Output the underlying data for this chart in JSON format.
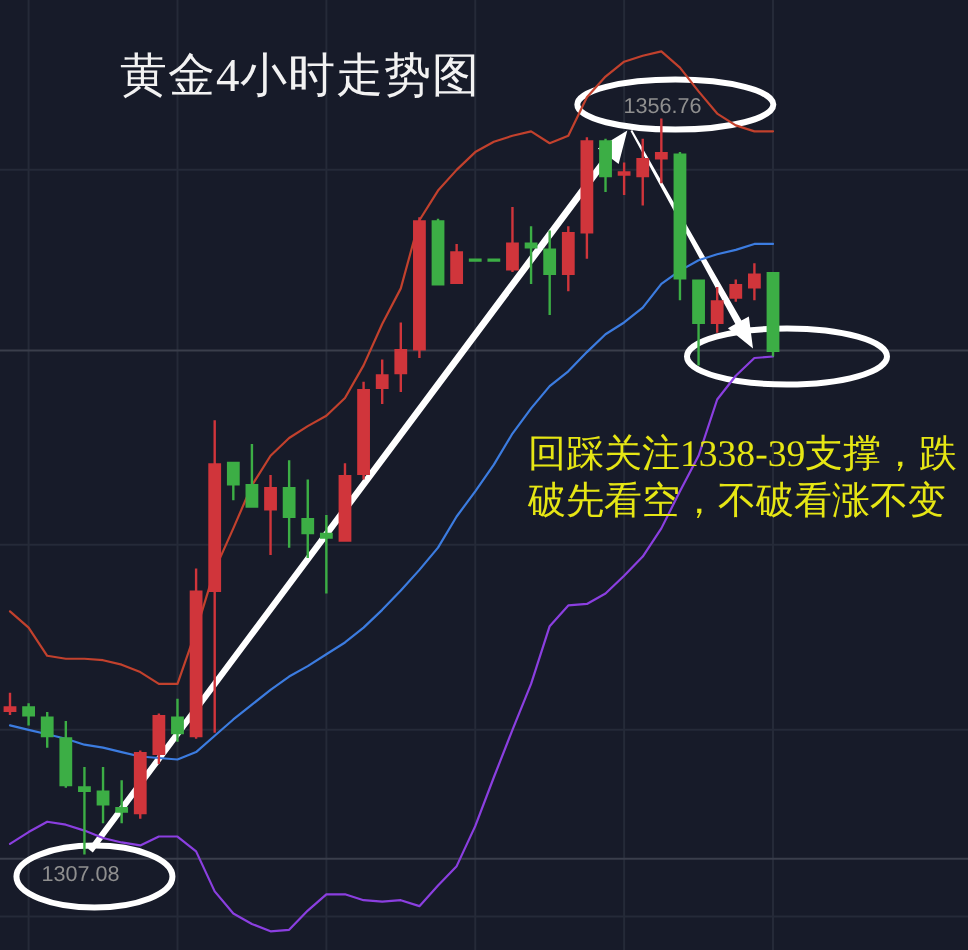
{
  "chart_data": {
    "type": "candlestick",
    "title": "黄金4小时走势图",
    "categories": [
      null,
      null,
      null,
      null,
      null,
      null,
      null,
      null,
      null,
      null,
      null,
      null,
      null,
      null,
      null,
      null,
      null,
      null,
      null,
      null,
      null,
      null,
      null,
      null,
      null,
      null,
      null,
      null,
      null,
      null,
      null,
      null,
      null,
      null,
      null,
      null,
      null,
      null,
      null,
      null,
      null,
      null
    ],
    "ohlc": [
      [
        1316.7,
        1318.0,
        1316.5,
        1317.1
      ],
      [
        1317.1,
        1317.3,
        1315.8,
        1316.4
      ],
      [
        1316.4,
        1316.7,
        1314.3,
        1315.0
      ],
      [
        1315.0,
        1316.1,
        1311.6,
        1311.7
      ],
      [
        1311.7,
        1313.0,
        1307.08,
        1311.3
      ],
      [
        1311.4,
        1313.0,
        1309.2,
        1310.4
      ],
      [
        1310.3,
        1312.1,
        1309.2,
        1309.9
      ],
      [
        1309.8,
        1314.1,
        1309.5,
        1314.0
      ],
      [
        1313.8,
        1316.6,
        1313.2,
        1316.5
      ],
      [
        1316.4,
        1317.6,
        1314.7,
        1315.2
      ],
      [
        1315.0,
        1326.4,
        1314.9,
        1324.9
      ],
      [
        1324.8,
        1336.4,
        1315.3,
        1333.5
      ],
      [
        1333.6,
        1333.6,
        1331.0,
        1332.0
      ],
      [
        1332.1,
        1334.8,
        1330.5,
        1330.5
      ],
      [
        1330.3,
        1332.7,
        1327.3,
        1331.9
      ],
      [
        1331.9,
        1333.7,
        1327.8,
        1329.8
      ],
      [
        1329.8,
        1332.4,
        1327.1,
        1328.7
      ],
      [
        1328.8,
        1330.0,
        1324.7,
        1328.4
      ],
      [
        1328.2,
        1333.5,
        1328.2,
        1332.7
      ],
      [
        1332.7,
        1339.0,
        1332.4,
        1338.5
      ],
      [
        1338.5,
        1340.5,
        1337.5,
        1339.5
      ],
      [
        1339.5,
        1343.0,
        1338.3,
        1341.2
      ],
      [
        1341.1,
        1350.1,
        1340.6,
        1349.9
      ],
      [
        1349.9,
        1350.0,
        1345.5,
        1345.5
      ],
      [
        1345.6,
        1348.3,
        1345.6,
        1347.8
      ],
      [
        1347.3,
        1347.3,
        1347.1,
        1347.1
      ],
      [
        1347.3,
        1347.3,
        1347.1,
        1347.1
      ],
      [
        1346.5,
        1350.8,
        1346.4,
        1348.4
      ],
      [
        1348.4,
        1349.5,
        1345.6,
        1348.0
      ],
      [
        1348.0,
        1349.2,
        1343.5,
        1346.2
      ],
      [
        1346.2,
        1349.5,
        1345.1,
        1349.1
      ],
      [
        1349.0,
        1355.5,
        1347.3,
        1355.3
      ],
      [
        1355.3,
        1355.4,
        1351.8,
        1352.8
      ],
      [
        1352.9,
        1353.8,
        1351.6,
        1353.2
      ],
      [
        1352.8,
        1355.4,
        1350.9,
        1354.1
      ],
      [
        1354.0,
        1356.76,
        1352.4,
        1354.5
      ],
      [
        1354.4,
        1354.5,
        1344.5,
        1345.9
      ],
      [
        1345.9,
        1345.9,
        1340.1,
        1342.9
      ],
      [
        1342.9,
        1345.4,
        1342.3,
        1344.5
      ],
      [
        1344.6,
        1345.9,
        1344.4,
        1345.6
      ],
      [
        1345.3,
        1347.0,
        1344.5,
        1346.3
      ],
      [
        1346.4,
        1346.4,
        1340.7,
        1341.0
      ]
    ],
    "colors": [
      "#d0353b",
      "#3cae45",
      "#3cae45",
      "#3cae45",
      "#3cae45",
      "#3cae45",
      "#3cae45",
      "#d0353b",
      "#d0353b",
      "#3cae45",
      "#d0353b",
      "#d0353b",
      "#3cae45",
      "#3cae45",
      "#d0353b",
      "#3cae45",
      "#3cae45",
      "#3cae45",
      "#d0353b",
      "#d0353b",
      "#d0353b",
      "#d0353b",
      "#d0353b",
      "#3cae45",
      "#d0353b",
      "#3cae45",
      "#3cae45",
      "#d0353b",
      "#3cae45",
      "#3cae45",
      "#d0353b",
      "#d0353b",
      "#3cae45",
      "#d0353b",
      "#d0353b",
      "#d0353b",
      "#3cae45",
      "#3cae45",
      "#d0353b",
      "#d0353b",
      "#d0353b",
      "#3cae45"
    ],
    "series": [
      {
        "type": "line",
        "color": "#c2412d",
        "values": [
          1323.5,
          1322.4,
          1320.5,
          1320.3,
          1320.3,
          1320.2,
          1319.9,
          1319.4,
          1318.6,
          1318.6,
          1322.2,
          1326.3,
          1329.1,
          1332.0,
          1334.0,
          1335.2,
          1336.0,
          1336.7,
          1337.9,
          1340.1,
          1342.9,
          1345.3,
          1349.9,
          1351.9,
          1353.3,
          1354.5,
          1355.2,
          1355.6,
          1355.9,
          1355.1,
          1355.6,
          1358.2,
          1359.6,
          1360.6,
          1361.0,
          1361.3,
          1360.2,
          1358.6,
          1357.1,
          1356.3,
          1355.9,
          1355.9
        ]
      },
      {
        "type": "line",
        "color": "#3c7ce0",
        "values": [
          1315.8,
          1315.5,
          1315.2,
          1314.9,
          1314.5,
          1314.3,
          1314.0,
          1313.7,
          1313.6,
          1313.5,
          1314.0,
          1315.1,
          1316.2,
          1317.2,
          1318.2,
          1319.1,
          1319.8,
          1320.6,
          1321.4,
          1322.4,
          1323.6,
          1324.9,
          1326.3,
          1327.8,
          1329.9,
          1331.6,
          1333.4,
          1335.5,
          1337.2,
          1338.7,
          1339.7,
          1341.0,
          1342.2,
          1343.0,
          1344.0,
          1345.6,
          1346.5,
          1347.2,
          1347.6,
          1347.9,
          1348.3,
          1348.3
        ]
      },
      {
        "type": "line",
        "color": "#8b3fe0",
        "values": [
          1307.8,
          1308.6,
          1309.3,
          1309.1,
          1308.7,
          1308.2,
          1307.9,
          1307.7,
          1308.3,
          1308.3,
          1307.3,
          1304.6,
          1303.1,
          1302.4,
          1301.9,
          1302.0,
          1303.3,
          1304.4,
          1304.4,
          1304.0,
          1303.9,
          1304.0,
          1303.6,
          1305.0,
          1306.3,
          1309.0,
          1312.3,
          1315.5,
          1318.6,
          1322.5,
          1323.9,
          1324.0,
          1324.7,
          1325.9,
          1327.2,
          1329.1,
          1331.6,
          1334.0,
          1337.8,
          1339.4,
          1340.6,
          1340.7
        ]
      }
    ],
    "annotations": [
      {
        "text": "1356.76",
        "y": 1356.76
      },
      {
        "text": "1307.08",
        "y": 1307.08
      },
      "回踩关注1338-39支撑，跌破先看空，不破看涨不变"
    ],
    "ref_lines": [
      {
        "axis": "y",
        "value": 1341.1,
        "color": "#3a3e4b"
      },
      {
        "axis": "y",
        "value": 1306.8,
        "color": "#3a3e4b"
      }
    ],
    "yticks": [
      {
        "value": 1353.3,
        "label": null
      },
      {
        "value": 1328.0,
        "label": null
      },
      {
        "value": 1315.5,
        "label": null
      },
      {
        "value": 1302.9,
        "label": null
      }
    ],
    "grid": true
  }
}
